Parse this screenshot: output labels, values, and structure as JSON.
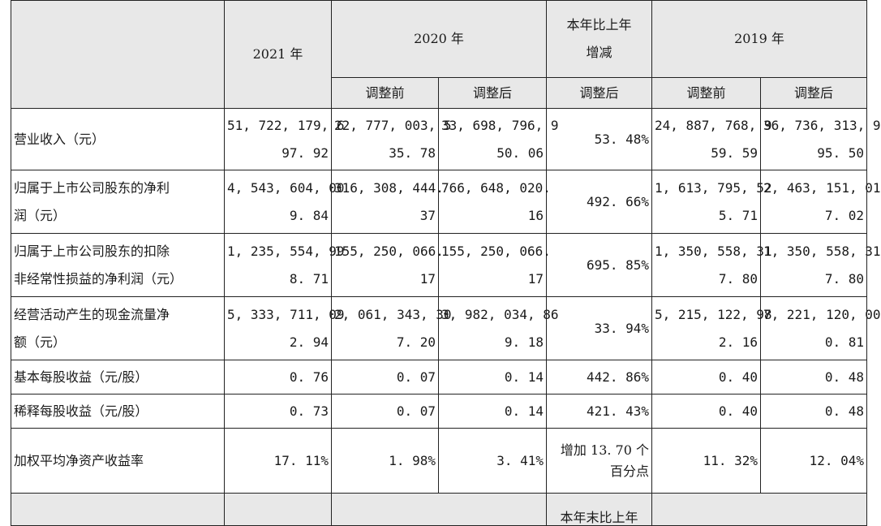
{
  "header": {
    "y2021": "2021 年",
    "y2020": "2020 年",
    "change_line1": "本年比上年",
    "change_line2": "增减",
    "y2019": "2019 年",
    "sub_before": "调整前",
    "sub_after": "调整后",
    "change_after": "调整后"
  },
  "rows": [
    {
      "label_lines": [
        "营业收入（元）"
      ],
      "c2021": [
        "51, 722, 179, 6",
        "97. 92"
      ],
      "c2020_before": [
        "22, 777, 003, 5",
        "35. 78"
      ],
      "c2020_after": [
        "33, 698, 796, 9",
        "50. 06"
      ],
      "change": [
        "53. 48%"
      ],
      "c2019_before": [
        "24, 887, 768, 9",
        "59. 59"
      ],
      "c2019_after": [
        "36, 736, 313, 9",
        "95. 50"
      ]
    },
    {
      "label_lines": [
        "归属于上市公司股东的净利",
        "润（元）"
      ],
      "c2021": [
        "4, 543, 604, 00",
        "9. 84"
      ],
      "c2020_before": [
        "316, 308, 444.",
        "37"
      ],
      "c2020_after": [
        "766, 648, 020.",
        "16"
      ],
      "change": [
        "492. 66%"
      ],
      "c2019_before": [
        "1, 613, 795, 52",
        "5. 71"
      ],
      "c2019_after": [
        "2, 463, 151, 01",
        "7. 02"
      ]
    },
    {
      "label_lines": [
        "归属于上市公司股东的扣除",
        "非经常性损益的净利润（元）"
      ],
      "c2021": [
        "1, 235, 554, 99",
        "8. 71"
      ],
      "c2020_before": [
        "155, 250, 066.",
        "17"
      ],
      "c2020_after": [
        "155, 250, 066.",
        "17"
      ],
      "change": [
        "695. 85%"
      ],
      "c2019_before": [
        "1, 350, 558, 31",
        "7. 80"
      ],
      "c2019_after": [
        "1, 350, 558, 31",
        "7. 80"
      ]
    },
    {
      "label_lines": [
        "经营活动产生的现金流量净",
        "额（元）"
      ],
      "c2021": [
        "5, 333, 711, 09",
        "2. 94"
      ],
      "c2020_before": [
        "2, 061, 343, 30",
        "7. 20"
      ],
      "c2020_after": [
        "3, 982, 034, 86",
        "9. 18"
      ],
      "change": [
        "33. 94%"
      ],
      "c2019_before": [
        "5, 215, 122, 98",
        "2. 16"
      ],
      "c2019_after": [
        "7, 221, 120, 00",
        "0. 81"
      ]
    },
    {
      "label_lines": [
        "基本每股收益（元/股）"
      ],
      "c2021": [
        "0. 76"
      ],
      "c2020_before": [
        "0. 07"
      ],
      "c2020_after": [
        "0. 14"
      ],
      "change": [
        "442. 86%"
      ],
      "c2019_before": [
        "0. 40"
      ],
      "c2019_after": [
        "0. 48"
      ]
    },
    {
      "label_lines": [
        "稀释每股收益（元/股）"
      ],
      "c2021": [
        "0. 73"
      ],
      "c2020_before": [
        "0. 07"
      ],
      "c2020_after": [
        "0. 14"
      ],
      "change": [
        "421. 43%"
      ],
      "c2019_before": [
        "0. 40"
      ],
      "c2019_after": [
        "0. 48"
      ]
    },
    {
      "label_lines": [
        "加权平均净资产收益率"
      ],
      "c2021": [
        "17. 11%"
      ],
      "c2020_before": [
        "1. 98%"
      ],
      "c2020_after": [
        "3. 41%"
      ],
      "change": [
        "增加 13. 70 个",
        "百分点"
      ],
      "c2019_before": [
        "11. 32%"
      ],
      "c2019_after": [
        "12. 04%"
      ]
    }
  ],
  "footer_partial": "本年末比上年"
}
